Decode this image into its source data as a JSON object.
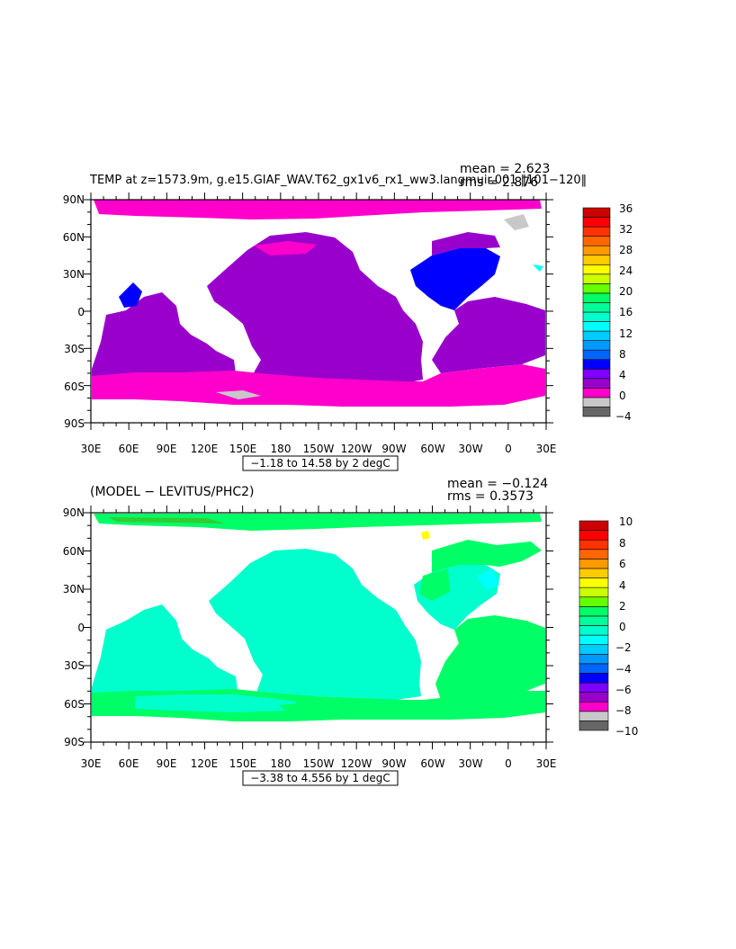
{
  "top_panel": {
    "title": "TEMP at z=1573.9m, g.e15.GIAF_WAV.T62_gx1v6_rx1_ww3.langmuir.001 ‖101−120‖",
    "mean_text": "mean = 2.623",
    "rms_text": "rms = 2.876",
    "contour_info": "−1.18 to 14.58 by 2 degC",
    "y_ticks": [
      "90N",
      "60N",
      "30N",
      "0",
      "30S",
      "60S",
      "90S"
    ],
    "x_ticks": [
      "30E",
      "60E",
      "90E",
      "120E",
      "150E",
      "180",
      "150W",
      "120W",
      "90W",
      "60W",
      "30W",
      "0",
      "30E"
    ],
    "colorbar": {
      "labels": [
        "36",
        "32",
        "28",
        "24",
        "20",
        "16",
        "12",
        "8",
        "4",
        "0",
        "−4"
      ],
      "colors": [
        "#666666",
        "#c8c8c8",
        "#ff00cc",
        "#9900cc",
        "#7f00ff",
        "#0000ff",
        "#0066ff",
        "#0099ff",
        "#00ccff",
        "#00ffff",
        "#00ffcc",
        "#00ff99",
        "#00ff66",
        "#66ff00",
        "#ccff00",
        "#ffff00",
        "#ffcc00",
        "#ff9900",
        "#ff6600",
        "#ff3300",
        "#ff0000",
        "#cc0000"
      ]
    }
  },
  "bottom_panel": {
    "title": "(MODEL − LEVITUS/PHC2)",
    "mean_text": "mean = −0.124",
    "rms_text": "rms = 0.3573",
    "contour_info": "−3.38 to 4.556 by 1 degC",
    "y_ticks": [
      "90N",
      "60N",
      "30N",
      "0",
      "30S",
      "60S",
      "90S"
    ],
    "x_ticks": [
      "30E",
      "60E",
      "90E",
      "120E",
      "150E",
      "180",
      "150W",
      "120W",
      "90W",
      "60W",
      "30W",
      "0",
      "30E"
    ],
    "colorbar": {
      "labels": [
        "10",
        "8",
        "6",
        "4",
        "2",
        "0",
        "−2",
        "−4",
        "−6",
        "−8",
        "−10"
      ],
      "colors": [
        "#666666",
        "#c8c8c8",
        "#ff00cc",
        "#9900cc",
        "#7f00ff",
        "#0000ff",
        "#0066ff",
        "#0099ff",
        "#00ccff",
        "#00ffff",
        "#00ffcc",
        "#00ff99",
        "#00ff66",
        "#66ff00",
        "#ccff00",
        "#ffff00",
        "#ffcc00",
        "#ff9900",
        "#ff6600",
        "#ff3300",
        "#ff0000",
        "#cc0000"
      ]
    }
  },
  "field_colors": {
    "top_purple": "#9900cc",
    "top_magenta": "#ff00cc",
    "top_blue": "#0000ff",
    "top_gray": "#c8c8c8",
    "top_cyan": "#00ffff",
    "bot_cyan": "#00ffcc",
    "bot_green": "#00ff66",
    "bot_lightcyan": "#00ffff",
    "bot_yellow": "#ffff00"
  }
}
